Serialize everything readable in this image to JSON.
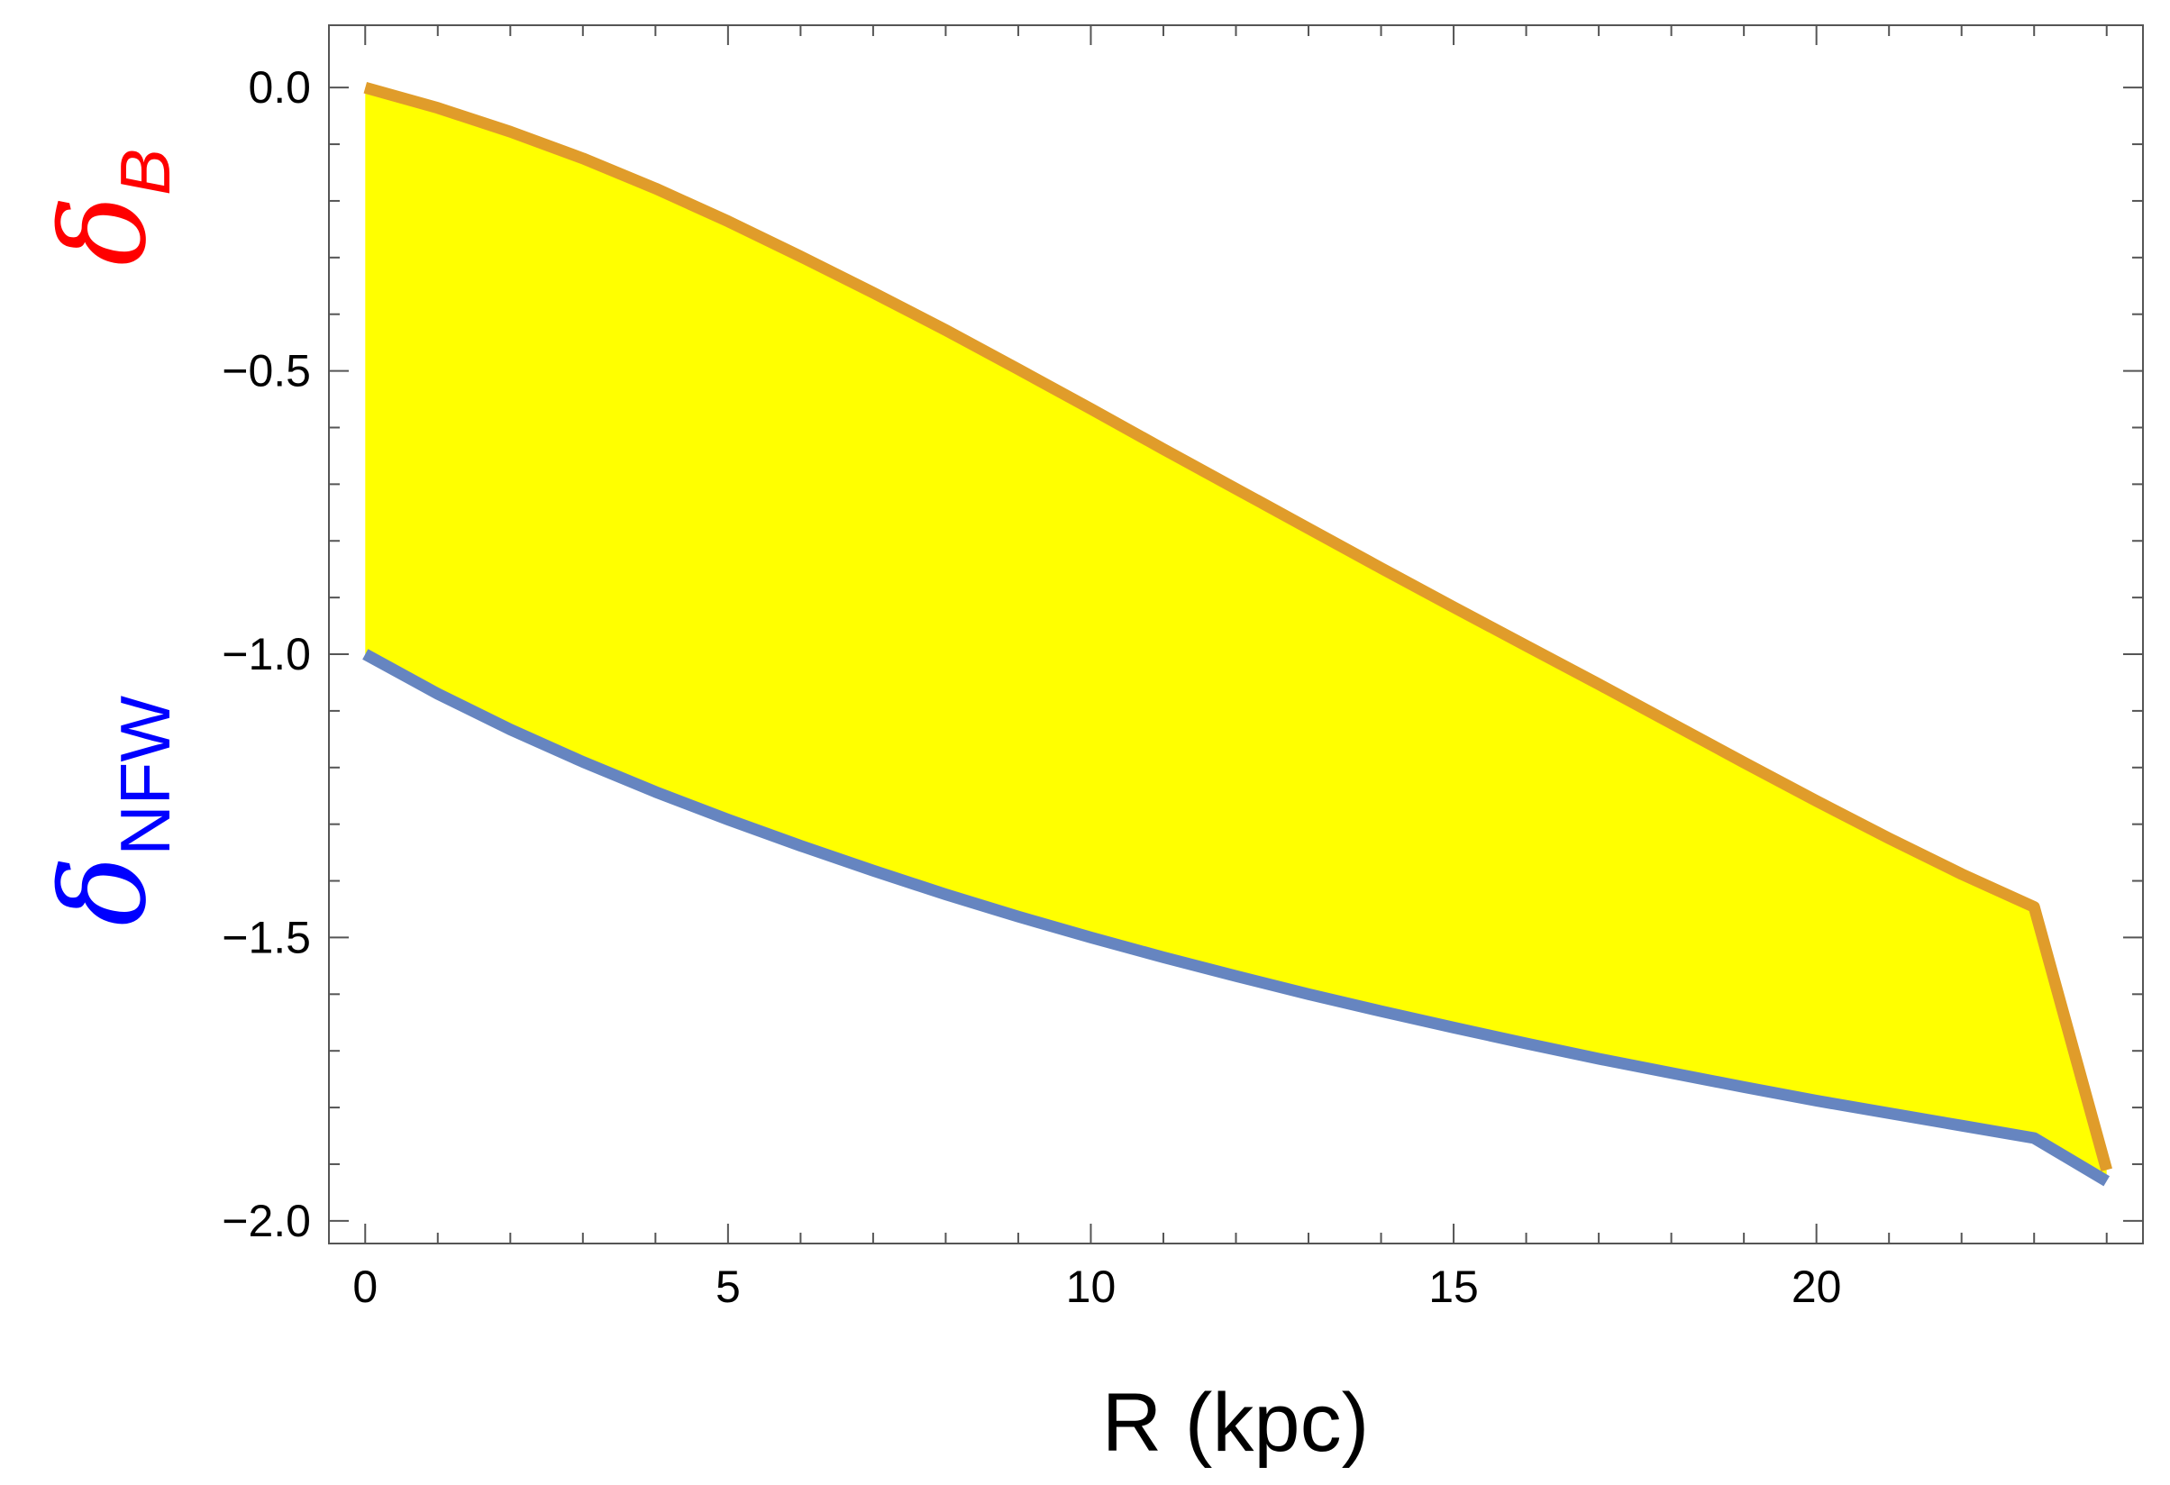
{
  "chart_data": {
    "type": "area",
    "title": "",
    "xlabel": "R (kpc)",
    "ylabels": [
      {
        "symbol": "δ",
        "subscript": "B",
        "color": "#ff0000"
      },
      {
        "symbol": "δ",
        "subscript": "NFW",
        "color": "#0000ff"
      }
    ],
    "xlim": [
      -0.5,
      24.5
    ],
    "ylim": [
      -2.04,
      0.11
    ],
    "xticks": [
      0,
      5,
      10,
      15,
      20
    ],
    "xtick_labels": [
      "0",
      "5",
      "10",
      "15",
      "20"
    ],
    "yticks": [
      0.0,
      -0.5,
      -1.0,
      -1.5,
      -2.0
    ],
    "ytick_labels": [
      "0.0",
      "−0.5",
      "−1.0",
      "−1.5",
      "−2.0"
    ],
    "grid": false,
    "fill_color": "#ffff00",
    "series": [
      {
        "color": "#e09c2a",
        "x": [
          0,
          1,
          2,
          3,
          4,
          5,
          6,
          7,
          8,
          9,
          10,
          11,
          12,
          13,
          14,
          15,
          16,
          17,
          18,
          19,
          20,
          21,
          22,
          23,
          24
        ],
        "y": [
          0.0,
          -0.036,
          -0.078,
          -0.125,
          -0.178,
          -0.236,
          -0.298,
          -0.362,
          -0.428,
          -0.497,
          -0.567,
          -0.638,
          -0.708,
          -0.778,
          -0.848,
          -0.917,
          -0.985,
          -1.053,
          -1.122,
          -1.191,
          -1.259,
          -1.325,
          -1.388,
          -1.446,
          -1.91
        ]
      },
      {
        "color": "#6685c0",
        "x": [
          0,
          1,
          2,
          3,
          4,
          5,
          6,
          7,
          8,
          9,
          10,
          11,
          12,
          13,
          14,
          15,
          16,
          17,
          18,
          19,
          20,
          21,
          22,
          23,
          24
        ],
        "y": [
          -1.0,
          -1.07,
          -1.133,
          -1.19,
          -1.243,
          -1.292,
          -1.338,
          -1.382,
          -1.424,
          -1.463,
          -1.5,
          -1.535,
          -1.568,
          -1.6,
          -1.63,
          -1.659,
          -1.687,
          -1.714,
          -1.739,
          -1.764,
          -1.788,
          -1.81,
          -1.832,
          -1.854,
          -1.93
        ]
      }
    ]
  }
}
